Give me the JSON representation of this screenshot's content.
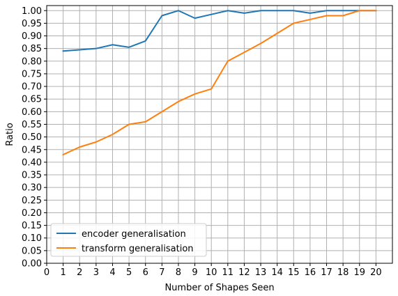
{
  "chart_data": {
    "type": "line",
    "xlabel": "Number of Shapes Seen",
    "ylabel": "Ratio",
    "xlim": [
      0,
      21
    ],
    "ylim": [
      0,
      1.02
    ],
    "x_ticks": [
      0,
      1,
      2,
      3,
      4,
      5,
      6,
      7,
      8,
      9,
      10,
      11,
      12,
      13,
      14,
      15,
      16,
      17,
      18,
      19,
      20
    ],
    "x_tick_labels": [
      "0",
      "1",
      "2",
      "3",
      "4",
      "5",
      "6",
      "7",
      "8",
      "9",
      "10",
      "11",
      "12",
      "13",
      "14",
      "15",
      "16",
      "17",
      "18",
      "19",
      "20"
    ],
    "y_ticks": [
      0,
      0.05,
      0.1,
      0.15,
      0.2,
      0.25,
      0.3,
      0.35,
      0.4,
      0.45,
      0.5,
      0.55,
      0.6,
      0.65,
      0.7,
      0.75,
      0.8,
      0.85,
      0.9,
      0.95,
      1.0
    ],
    "y_tick_labels": [
      "0.00",
      "0.05",
      "0.10",
      "0.15",
      "0.20",
      "0.25",
      "0.30",
      "0.35",
      "0.40",
      "0.45",
      "0.50",
      "0.55",
      "0.60",
      "0.65",
      "0.70",
      "0.75",
      "0.80",
      "0.85",
      "0.90",
      "0.95",
      "1.00"
    ],
    "grid": true,
    "legend_position": "lower-left",
    "x": [
      1,
      2,
      3,
      4,
      5,
      6,
      7,
      8,
      9,
      10,
      11,
      12,
      13,
      14,
      15,
      16,
      17,
      18,
      19,
      20
    ],
    "series": [
      {
        "name": "encoder generalisation",
        "color": "#1f77b4",
        "values": [
          0.84,
          0.845,
          0.85,
          0.865,
          0.855,
          0.88,
          0.98,
          1.0,
          0.97,
          0.985,
          1.0,
          0.99,
          1.0,
          1.0,
          1.0,
          0.99,
          1.0,
          1.0,
          1.0,
          1.0
        ]
      },
      {
        "name": "transform generalisation",
        "color": "#ff7f0e",
        "values": [
          0.43,
          0.46,
          0.48,
          0.51,
          0.55,
          0.56,
          0.6,
          0.64,
          0.67,
          0.69,
          0.8,
          0.835,
          0.87,
          0.91,
          0.95,
          0.965,
          0.98,
          0.98,
          1.0,
          1.0
        ]
      }
    ]
  }
}
